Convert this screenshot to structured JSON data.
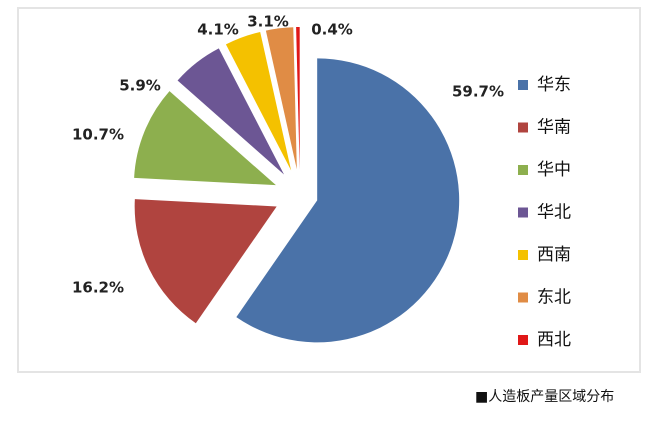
{
  "chart_data": {
    "type": "pie",
    "categories": [
      "华东",
      "华南",
      "华中",
      "华北",
      "西南",
      "东北",
      "西北"
    ],
    "values": [
      59.7,
      16.2,
      10.7,
      5.9,
      4.1,
      3.1,
      0.4
    ],
    "value_labels": [
      "59.7%",
      "16.2%",
      "10.7%",
      "5.9%",
      "4.1%",
      "3.1%",
      "0.4%"
    ],
    "colors": [
      "#4a72a8",
      "#b0443f",
      "#8daf4e",
      "#6c5694",
      "#f4c100",
      "#e08c45",
      "#e01818"
    ],
    "caption": "■人造板产量区域分布"
  }
}
